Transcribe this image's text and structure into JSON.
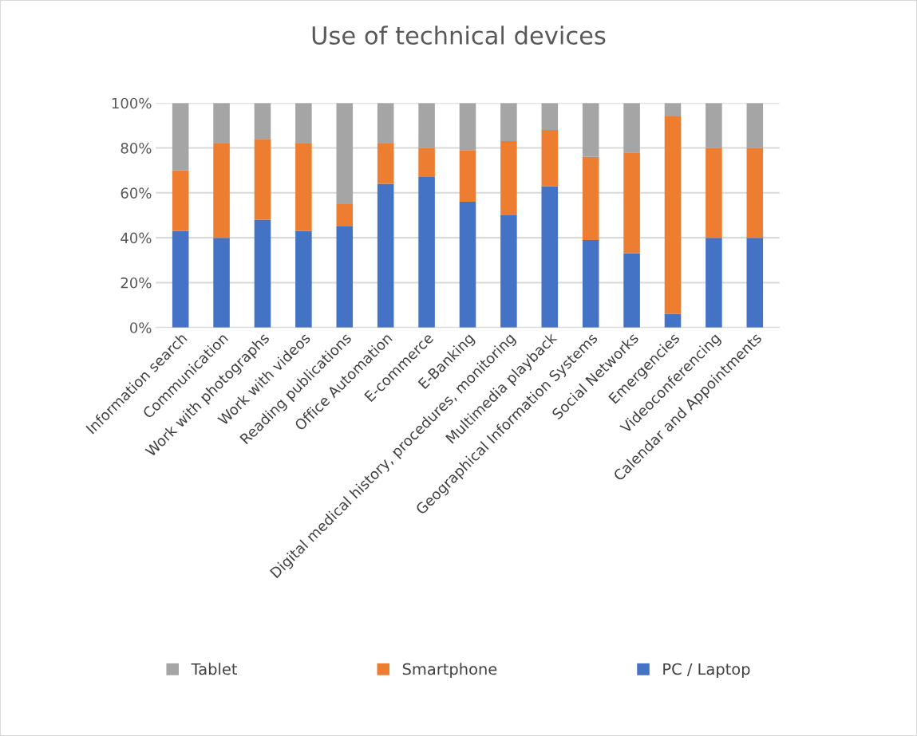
{
  "chart_data": {
    "type": "bar",
    "title": "Use of technical devices",
    "stacked": true,
    "categories": [
      "Information search",
      "Communication",
      "Work with photographs",
      "Work with videos",
      "Reading publications",
      "Office Automation",
      "E-commerce",
      "E-Banking",
      "Digital medical history, procedures, monitoring",
      "Multimedia playback",
      "Geographical Information Systems",
      "Social Networks",
      "Emergencies",
      "Videoconferencing",
      "Calendar and Appointments"
    ],
    "series": [
      {
        "name": "PC / Laptop",
        "color": "#4472c4",
        "values": [
          43,
          40,
          48,
          43,
          45,
          64,
          67,
          56,
          50,
          63,
          39,
          33,
          6,
          40,
          40
        ]
      },
      {
        "name": "Smartphone",
        "color": "#ed7d31",
        "values": [
          27,
          42,
          36,
          39,
          10,
          18,
          13,
          23,
          33,
          25,
          37,
          45,
          88,
          40,
          40
        ]
      },
      {
        "name": "Tablet",
        "color": "#a5a5a5",
        "values": [
          30,
          18,
          16,
          18,
          45,
          18,
          20,
          21,
          17,
          12,
          24,
          22,
          6,
          20,
          20
        ]
      }
    ],
    "ylim": [
      0,
      100
    ],
    "yticks": [
      {
        "value": 0,
        "label": "0%"
      },
      {
        "value": 20,
        "label": "20%"
      },
      {
        "value": 40,
        "label": "40%"
      },
      {
        "value": 60,
        "label": "60%"
      },
      {
        "value": 80,
        "label": "80%"
      },
      {
        "value": 100,
        "label": "100%"
      }
    ],
    "grid": "y",
    "legend": "bottom"
  }
}
